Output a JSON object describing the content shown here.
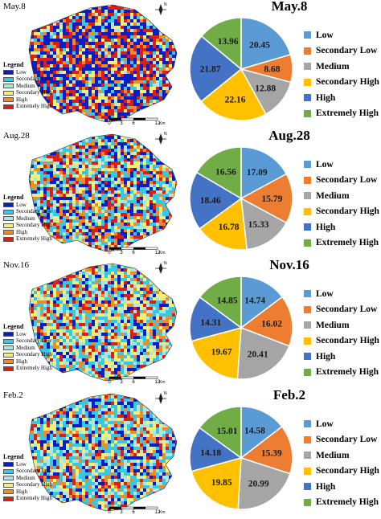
{
  "colors": {
    "low": "#0a1ec8",
    "secondary_low": "#37c8e6",
    "medium": "#aee6dc",
    "secondary_high": "#f0f078",
    "high": "#f08c28",
    "extremely_high": "#dc1e14",
    "pie": [
      "#5b9bd5",
      "#ed7d31",
      "#a5a5a5",
      "#ffc000",
      "#4472c4",
      "#70ad47"
    ]
  },
  "map_legend": {
    "title": "Legend",
    "items": [
      "Low",
      "Secondary Low",
      "Medium",
      "Secondary High",
      "High",
      "Extremely High"
    ]
  },
  "scale": {
    "ticks": [
      "0",
      "3",
      "6",
      "12"
    ],
    "unit": "Km"
  },
  "north": "N",
  "maps": [
    {
      "date": "May.8",
      "mix": [
        0.32,
        0.1,
        0.08,
        0.12,
        0.13,
        0.25
      ]
    },
    {
      "date": "Aug.28",
      "mix": [
        0.18,
        0.22,
        0.14,
        0.16,
        0.12,
        0.18
      ]
    },
    {
      "date": "Nov.16",
      "mix": [
        0.12,
        0.24,
        0.18,
        0.2,
        0.12,
        0.14
      ]
    },
    {
      "date": "Feb.2",
      "mix": [
        0.16,
        0.26,
        0.18,
        0.16,
        0.11,
        0.13
      ]
    }
  ],
  "chart_data": [
    {
      "type": "pie",
      "title": "May.8",
      "categories": [
        "Low",
        "Secondary Low",
        "Medium",
        "Secondary High",
        "High",
        "Extremely High"
      ],
      "values": [
        20.45,
        8.68,
        12.88,
        22.16,
        21.87,
        13.96
      ],
      "legend": "right"
    },
    {
      "type": "pie",
      "title": "Aug.28",
      "categories": [
        "Low",
        "Secondary Low",
        "Medium",
        "Secondary High",
        "High",
        "Extremely High"
      ],
      "values": [
        17.09,
        15.79,
        15.33,
        16.78,
        18.46,
        16.56
      ],
      "legend": "right"
    },
    {
      "type": "pie",
      "title": "Nov.16",
      "categories": [
        "Low",
        "Secondary Low",
        "Medium",
        "Secondary High",
        "High",
        "Extremely High"
      ],
      "values": [
        14.74,
        16.02,
        20.41,
        19.67,
        14.31,
        14.85
      ],
      "legend": "right"
    },
    {
      "type": "pie",
      "title": "Feb.2",
      "categories": [
        "Low",
        "Secondary Low",
        "Medium",
        "Secondary High",
        "High",
        "Extremely High"
      ],
      "values": [
        14.58,
        15.39,
        20.99,
        19.85,
        14.18,
        15.01
      ],
      "legend": "right"
    }
  ]
}
